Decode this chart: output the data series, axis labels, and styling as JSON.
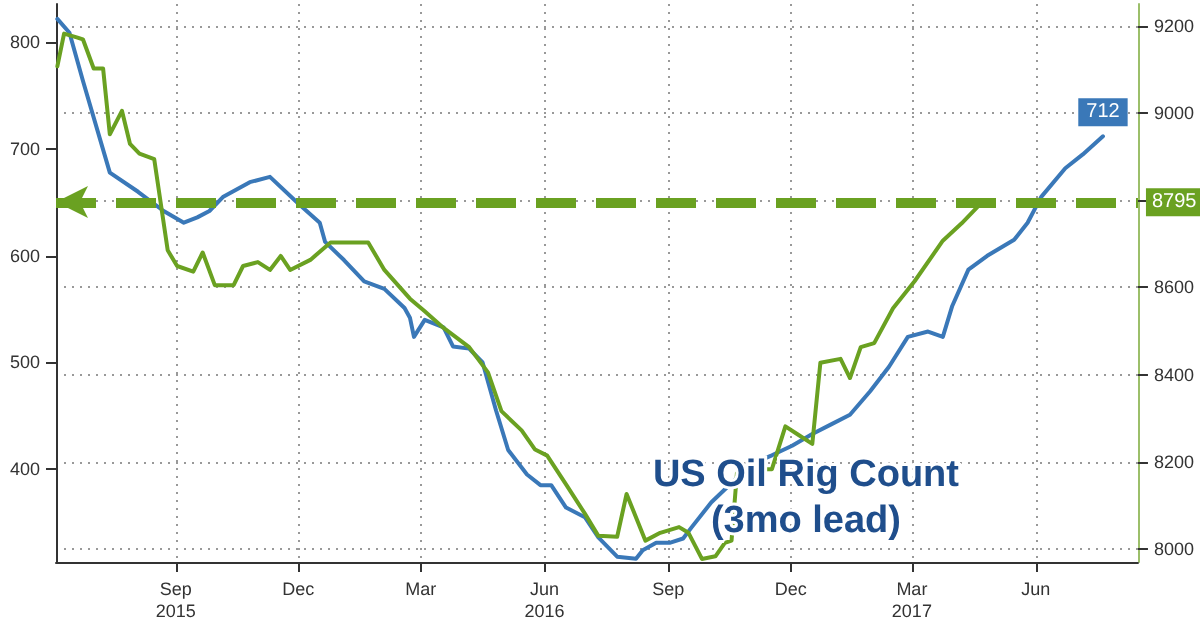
{
  "chart_data": {
    "type": "line",
    "title": "US Oil Rig Count\n(3mo lead)",
    "xlim": [
      "2015-06-18",
      "2017-08-30"
    ],
    "xticks": [
      {
        "value": "2015-09-15",
        "label": "Sep\n2015"
      },
      {
        "value": "2015-12-15",
        "label": "Dec"
      },
      {
        "value": "2016-03-15",
        "label": "Mar"
      },
      {
        "value": "2016-06-15",
        "label": "Jun\n2016"
      },
      {
        "value": "2016-09-15",
        "label": "Sep"
      },
      {
        "value": "2016-12-15",
        "label": "Dec"
      },
      {
        "value": "2017-03-15",
        "label": "Mar\n2017"
      },
      {
        "value": "2017-06-15",
        "label": "Jun"
      }
    ],
    "ylim": [
      313,
      836
    ],
    "yticks": [
      400,
      500,
      600,
      700,
      800
    ],
    "y2lim": [
      7970,
      9250
    ],
    "y2ticks": [
      8000,
      8200,
      8400,
      8600,
      {
        "value": 8800,
        "label": null
      },
      9000,
      9200
    ],
    "grid": true,
    "marker": "none",
    "line_style": "solid",
    "series": [
      {
        "color": "#3a78b8",
        "x": [
          "2015-06-19",
          "2015-06-28",
          "2015-07-08",
          "2015-07-28",
          "2015-08-18",
          "2015-09-06",
          "2015-09-21",
          "2015-10-01",
          "2015-10-10",
          "2015-10-20",
          "2015-11-09",
          "2015-11-24",
          "2015-12-15",
          "2015-12-31",
          "2016-01-04",
          "2016-01-18",
          "2016-02-02",
          "2016-02-17",
          "2016-03-03",
          "2016-03-07",
          "2016-03-10",
          "2016-03-18",
          "2016-04-01",
          "2016-04-08",
          "2016-04-20",
          "2016-04-30",
          "2016-05-10",
          "2016-05-19",
          "2016-06-02",
          "2016-06-12",
          "2016-06-20",
          "2016-07-01",
          "2016-07-15",
          "2016-07-25",
          "2016-08-08",
          "2016-08-22",
          "2016-08-27",
          "2016-09-06",
          "2016-09-16",
          "2016-09-26",
          "2016-10-02",
          "2016-10-17",
          "2016-11-01",
          "2016-11-16",
          "2016-12-01",
          "2016-12-16",
          "2016-12-31",
          "2017-01-14",
          "2017-01-28",
          "2017-02-12",
          "2017-02-26",
          "2017-03-12",
          "2017-03-27",
          "2017-04-07",
          "2017-04-14",
          "2017-04-26",
          "2017-05-10",
          "2017-05-30",
          "2017-06-09",
          "2017-06-19",
          "2017-07-07",
          "2017-07-20",
          "2017-08-04"
        ],
        "values": [
          822,
          809,
          764,
          678,
          660,
          642,
          631,
          636,
          642,
          655,
          669,
          674,
          649,
          631,
          613,
          596,
          576,
          569,
          551,
          542,
          524,
          540,
          533,
          515,
          513,
          500,
          455,
          418,
          395,
          385,
          385,
          364,
          355,
          336,
          318,
          316,
          324,
          331,
          331,
          335,
          345,
          369,
          387,
          405,
          413,
          422,
          433,
          442,
          451,
          473,
          496,
          524,
          529,
          524,
          553,
          587,
          600,
          615,
          631,
          655,
          682,
          695,
          712
        ],
        "value_labels": [
          null,
          null,
          null,
          null,
          null,
          null,
          null,
          null,
          null,
          null,
          null,
          null,
          null,
          null,
          null,
          null,
          null,
          null,
          null,
          null,
          null,
          null,
          null,
          null,
          null,
          null,
          null,
          null,
          null,
          null,
          null,
          null,
          null,
          null,
          null,
          null,
          null,
          null,
          null,
          null,
          null,
          null,
          null,
          null,
          null,
          null,
          null,
          null,
          null,
          null,
          null,
          null,
          null,
          null,
          null,
          null,
          null,
          null,
          null,
          null,
          null,
          null,
          "712"
        ]
      },
      {
        "color": "#6aa121",
        "axis": "y2",
        "x": [
          "2015-06-19",
          "2015-06-24",
          "2015-07-04",
          "2015-07-08",
          "2015-07-16",
          "2015-07-23",
          "2015-07-28",
          "2015-08-06",
          "2015-08-12",
          "2015-08-19",
          "2015-08-30",
          "2015-09-09",
          "2015-09-16",
          "2015-09-28",
          "2015-10-05",
          "2015-10-14",
          "2015-10-28",
          "2015-11-04",
          "2015-11-15",
          "2015-11-24",
          "2015-12-02",
          "2015-12-09",
          "2015-12-24",
          "2016-01-08",
          "2016-01-18",
          "2016-02-05",
          "2016-02-17",
          "2016-03-07",
          "2016-03-18",
          "2016-04-01",
          "2016-04-20",
          "2016-05-04",
          "2016-05-14",
          "2016-05-29",
          "2016-06-08",
          "2016-06-17",
          "2016-07-01",
          "2016-07-15",
          "2016-07-25",
          "2016-08-08",
          "2016-08-15",
          "2016-08-29",
          "2016-09-09",
          "2016-09-23",
          "2016-09-30",
          "2016-10-10",
          "2016-10-20",
          "2016-10-27",
          "2016-11-01",
          "2016-11-05",
          "2016-11-16",
          "2016-12-01",
          "2016-12-11",
          "2016-12-20",
          "2016-12-31",
          "2017-01-06",
          "2017-01-21",
          "2017-01-28",
          "2017-02-05",
          "2017-02-15",
          "2017-03-01",
          "2017-03-17",
          "2017-04-07",
          "2017-04-21",
          "2017-05-06"
        ],
        "values": [
          9107,
          9182,
          9173,
          9169,
          9102,
          9102,
          8951,
          9005,
          8929,
          8907,
          8894,
          8685,
          8649,
          8636,
          8680,
          8605,
          8605,
          8649,
          8658,
          8640,
          8672,
          8640,
          8663,
          8703,
          8703,
          8703,
          8640,
          8574,
          8545,
          8507,
          8463,
          8405,
          8316,
          8272,
          8228,
          8214,
          8148,
          8081,
          8030,
          8028,
          8126,
          8019,
          8037,
          8050,
          8037,
          7977,
          7983,
          8014,
          8019,
          8174,
          8183,
          8183,
          8281,
          8263,
          8241,
          8427,
          8436,
          8392,
          8463,
          8472,
          8552,
          8614,
          8707,
          8747,
          8795
        ]
      }
    ],
    "ref_lines": [
      {
        "axis": "y2",
        "value": 8795,
        "label": "8795",
        "color": "#6aa121",
        "line_style": "dashed"
      }
    ]
  }
}
